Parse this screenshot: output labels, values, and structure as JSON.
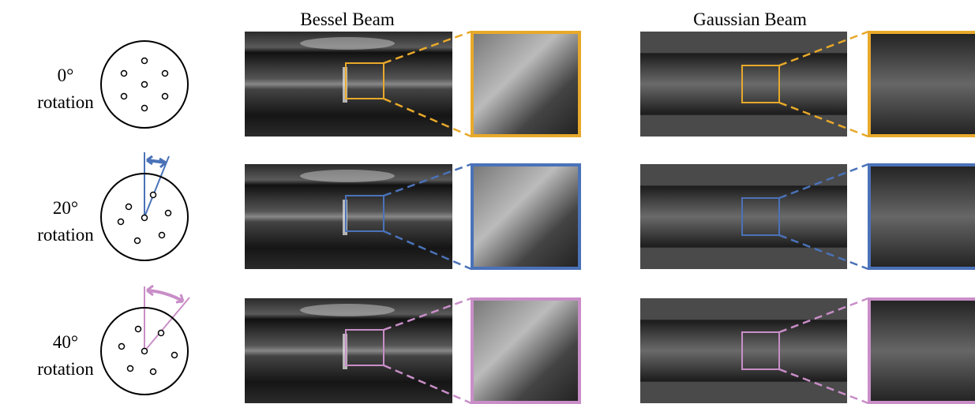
{
  "header": {
    "bessel": "Bessel Beam",
    "gaussian": "Gaussian Beam"
  },
  "rows": [
    {
      "angle": "0°",
      "label": "rotation",
      "color": "#e8a92a"
    },
    {
      "angle": "20°",
      "label": "rotation",
      "color": "#4a72b8"
    },
    {
      "angle": "40°",
      "label": "rotation",
      "color": "#c98ec8"
    }
  ]
}
